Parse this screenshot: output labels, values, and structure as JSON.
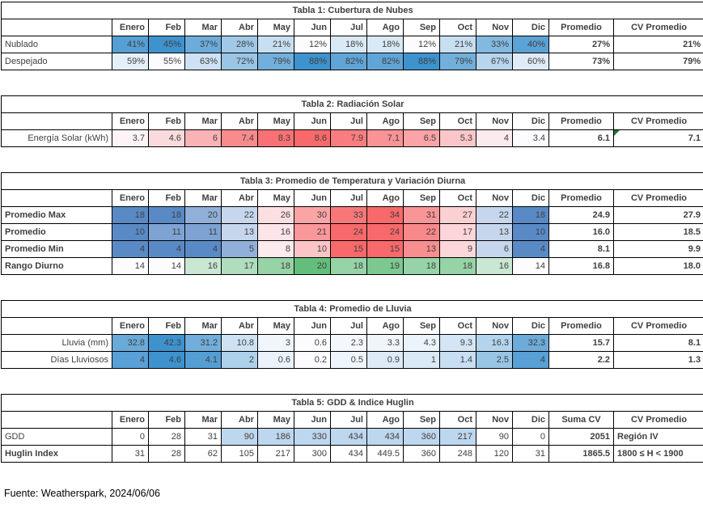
{
  "source_note": "Fuente: Weatherspark, 2024/06/06",
  "months": [
    "Enero",
    "Feb",
    "Mar",
    "Abr",
    "May",
    "Jun",
    "Jul",
    "Ago",
    "Sep",
    "Oct",
    "Nov",
    "Dic"
  ],
  "colors": {
    "scale_neutral": "#FCFCFF",
    "scale_max_blue": "#3E92CE",
    "scale_max_red": "#F8696B",
    "scale_max_green": "#63BE7B",
    "scale_low_blue": "#5A8AC6",
    "row_highlight": "#BDD7EE",
    "cell_text": "#3F3F3F",
    "border": "#000000",
    "error_flag_green": "#1E7B34"
  },
  "chart_data": [
    {
      "type": "table",
      "title": "Tabla 1: Cubertura de Nubes",
      "categories": [
        "Enero",
        "Feb",
        "Mar",
        "Abr",
        "May",
        "Jun",
        "Jul",
        "Ago",
        "Sep",
        "Oct",
        "Nov",
        "Dic"
      ],
      "summary_columns": [
        "Promedio",
        "CV Promedio"
      ],
      "rows": [
        {
          "label": "Nublado",
          "values": [
            41,
            45,
            37,
            28,
            21,
            12,
            18,
            18,
            12,
            21,
            33,
            40
          ],
          "suffix": "%",
          "scale": "white-blue",
          "summary": [
            "27%",
            "21%"
          ]
        },
        {
          "label": "Despejado",
          "values": [
            59,
            55,
            63,
            72,
            79,
            88,
            82,
            82,
            88,
            79,
            67,
            60
          ],
          "suffix": "%",
          "scale": "white-blue",
          "summary": [
            "73%",
            "79%"
          ]
        }
      ]
    },
    {
      "type": "table",
      "title": "Tabla 2: Radiación Solar",
      "categories": [
        "Enero",
        "Feb",
        "Mar",
        "Abr",
        "May",
        "Jun",
        "Jul",
        "Ago",
        "Sep",
        "Oct",
        "Nov",
        "Dic"
      ],
      "summary_columns": [
        "Promedio",
        "CV Promedio"
      ],
      "rows": [
        {
          "label": "Energía Solar (kWh)",
          "label_align": "right",
          "values": [
            3.7,
            4.6,
            6,
            7.4,
            8.3,
            8.6,
            7.9,
            7.1,
            6.5,
            5.3,
            4,
            3.4
          ],
          "suffix": "",
          "scale": "white-red",
          "summary": [
            "6.1",
            "7.1"
          ],
          "summary_flags": [
            false,
            true
          ]
        }
      ]
    },
    {
      "type": "table",
      "title": "Tabla 3: Promedio de Temperatura y Variación Diurna",
      "categories": [
        "Enero",
        "Feb",
        "Mar",
        "Abr",
        "May",
        "Jun",
        "Jul",
        "Ago",
        "Sep",
        "Oct",
        "Nov",
        "Dic"
      ],
      "summary_columns": [
        "Promedio",
        "CV Promedio"
      ],
      "rows": [
        {
          "label": "Promedio Max",
          "label_bold": true,
          "values": [
            18,
            18,
            20,
            22,
            26,
            30,
            33,
            34,
            31,
            27,
            22,
            18
          ],
          "suffix": "",
          "scale": "blue-white-red",
          "summary": [
            "24.9",
            "27.9"
          ]
        },
        {
          "label": "Promedio",
          "label_bold": true,
          "values": [
            10,
            11,
            11,
            13,
            16,
            21,
            24,
            24,
            22,
            17,
            13,
            10
          ],
          "suffix": "",
          "scale": "blue-white-red",
          "summary": [
            "16.0",
            "18.5"
          ]
        },
        {
          "label": "Promedio Min",
          "label_bold": true,
          "values": [
            4,
            4,
            4,
            5,
            8,
            10,
            15,
            15,
            13,
            9,
            6,
            4
          ],
          "suffix": "",
          "scale": "blue-white-red",
          "summary": [
            "8.1",
            "9.9"
          ]
        },
        {
          "label": "Rango Diurno",
          "label_bold": true,
          "values": [
            14,
            14,
            16,
            17,
            18,
            20,
            18,
            19,
            18,
            18,
            16,
            14
          ],
          "suffix": "",
          "scale": "white-green",
          "summary": [
            "16.8",
            "18.0"
          ]
        }
      ]
    },
    {
      "type": "table",
      "title": "Tabla 4: Promedio de Lluvia",
      "categories": [
        "Enero",
        "Feb",
        "Mar",
        "Abr",
        "May",
        "Jun",
        "Jul",
        "Ago",
        "Sep",
        "Oct",
        "Nov",
        "Dic"
      ],
      "summary_columns": [
        "Promedio",
        "CV Promedio"
      ],
      "rows": [
        {
          "label": "Lluvia (mm)",
          "label_align": "right",
          "values": [
            32.8,
            42.3,
            31.2,
            10.8,
            3,
            0.6,
            2.3,
            3.3,
            4.3,
            9.3,
            16.3,
            32.3
          ],
          "suffix": "",
          "scale": "white-blue",
          "summary": [
            "15.7",
            "8.1"
          ]
        },
        {
          "label": "Días Lluviosos",
          "label_align": "right",
          "values": [
            4,
            4.6,
            4.1,
            2,
            0.6,
            0.2,
            0.5,
            0.9,
            1,
            1.4,
            2.5,
            4
          ],
          "suffix": "",
          "scale": "white-blue",
          "summary": [
            "2.2",
            "1.3"
          ]
        }
      ]
    },
    {
      "type": "table",
      "title": "Tabla 5: GDD & Indice Huglin",
      "categories": [
        "Enero",
        "Feb",
        "Mar",
        "Abr",
        "May",
        "Jun",
        "Jul",
        "Ago",
        "Sep",
        "Oct",
        "Nov",
        "Dic"
      ],
      "summary_columns": [
        "Suma CV",
        "CV Promedio"
      ],
      "rows": [
        {
          "label": "GDD",
          "values": [
            0,
            28,
            31,
            90,
            186,
            330,
            434,
            434,
            360,
            217,
            90,
            0
          ],
          "suffix": "",
          "scale": "none",
          "highlight_cols": [
            3,
            4,
            5,
            6,
            7,
            8,
            9
          ],
          "summary": [
            "2051",
            "Región IV"
          ],
          "summary_align": [
            "right",
            "left"
          ]
        },
        {
          "label": "Huglin Index",
          "label_bold": true,
          "values": [
            31,
            28,
            62,
            105,
            217,
            300,
            434,
            449.5,
            360,
            248,
            120,
            31
          ],
          "suffix": "",
          "scale": "none",
          "summary": [
            "1865.5",
            "1800 ≤ H < 1900"
          ],
          "summary_align": [
            "right",
            "left"
          ]
        }
      ]
    }
  ]
}
